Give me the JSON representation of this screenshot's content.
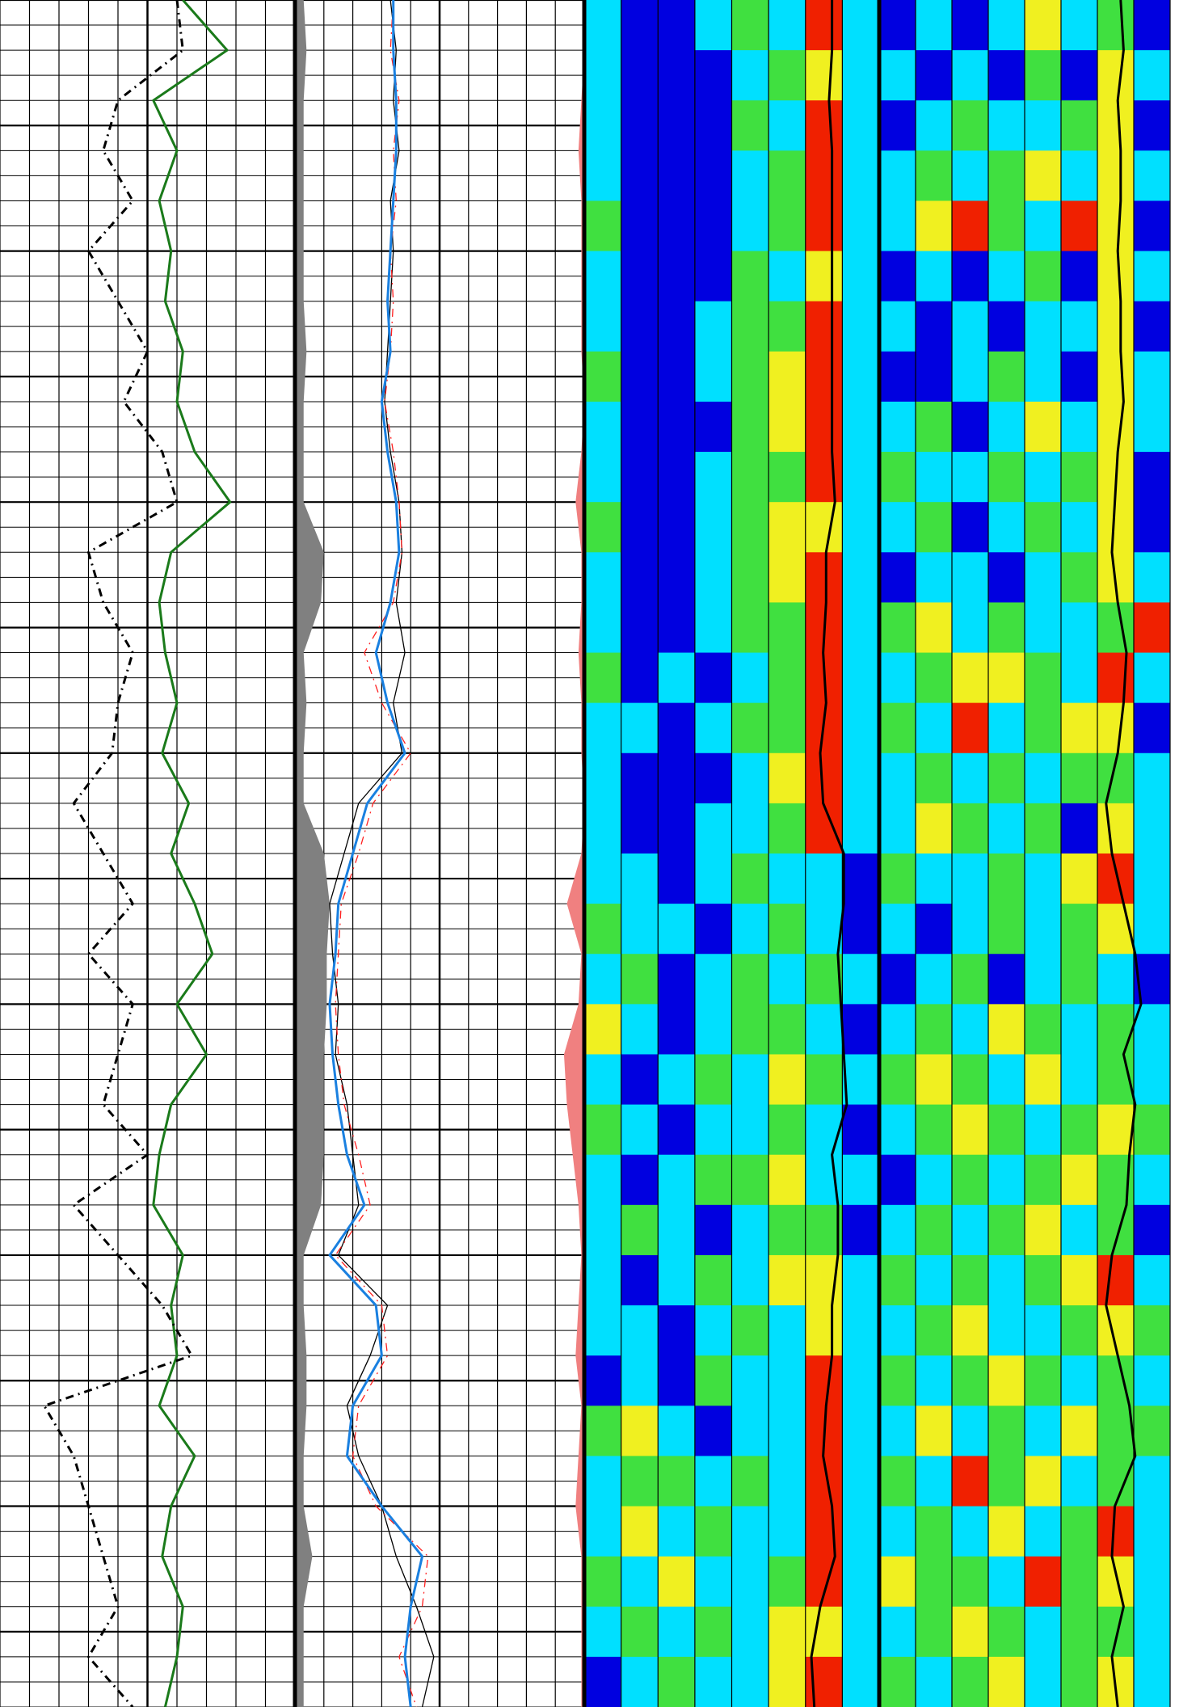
{
  "chart_data": {
    "type": "well-log",
    "ylim": [
      0,
      68
    ],
    "yticks": [
      0,
      1,
      2,
      3,
      4,
      5,
      6,
      7,
      8,
      9,
      10,
      11,
      12,
      13,
      14,
      15,
      16,
      17,
      18,
      19,
      20,
      21,
      22,
      23,
      24,
      25,
      26,
      27,
      28,
      29,
      30,
      31,
      32,
      33,
      34,
      35,
      36,
      37,
      38,
      39,
      40,
      41,
      42,
      43,
      44,
      45,
      46,
      47,
      48,
      49,
      50,
      51,
      52,
      53,
      54,
      55,
      56,
      57,
      58,
      59,
      60,
      61,
      62,
      63,
      64,
      65,
      66,
      67,
      68
    ],
    "depth": [
      0,
      2,
      4,
      6,
      8,
      10,
      12,
      14,
      16,
      18,
      20,
      22,
      24,
      26,
      28,
      30,
      32,
      34,
      36,
      38,
      40,
      42,
      44,
      46,
      48,
      50,
      52,
      54,
      56,
      58,
      60,
      62,
      64,
      66,
      68
    ],
    "colors": [
      "#0000e0",
      "#00e0ff",
      "#40e040",
      "#f0f020",
      "#f02000"
    ],
    "tracks": [
      {
        "type": "line",
        "xlim": [
          0,
          100
        ],
        "xticks": [
          0,
          10,
          20,
          30,
          40,
          50,
          60,
          70,
          80,
          90,
          100
        ],
        "grid": "both",
        "series": [
          {
            "color": "#1a7a1a",
            "dash": false,
            "values": [
              62,
              77,
              52,
              60,
              54,
              58,
              56,
              62,
              60,
              66,
              78,
              58,
              54,
              56,
              60,
              55,
              64,
              58,
              66,
              72,
              60,
              70,
              58,
              54,
              52,
              62,
              58,
              60,
              54,
              66,
              58,
              55,
              62,
              60,
              56
            ]
          },
          {
            "color": "#000000",
            "dash": true,
            "values": [
              60,
              62,
              40,
              35,
              45,
              30,
              40,
              50,
              42,
              55,
              60,
              30,
              35,
              45,
              40,
              38,
              25,
              35,
              45,
              30,
              45,
              40,
              35,
              50,
              25,
              40,
              55,
              65,
              15,
              25,
              30,
              35,
              40,
              30,
              45
            ]
          }
        ]
      },
      {
        "type": "line",
        "xlim": [
          0,
          100
        ],
        "xticks": [
          0,
          10,
          20,
          30,
          40,
          50,
          60,
          70,
          80,
          90,
          100
        ],
        "grid": "both",
        "series": [
          {
            "color": "#808080",
            "fill": "left",
            "values": [
              3,
              4,
              3,
              3,
              3,
              3,
              3,
              4,
              3,
              3,
              3,
              10,
              9,
              3,
              4,
              3,
              3,
              10,
              12,
              11,
              11,
              10,
              10,
              10,
              9,
              3,
              3,
              4,
              4,
              3,
              3,
              6,
              3,
              3,
              3
            ]
          },
          {
            "color": "#f08080",
            "fill": "right",
            "values": [
              0,
              0,
              1,
              2,
              1,
              1,
              1,
              1,
              0,
              1,
              3,
              1,
              1,
              2,
              1,
              1,
              0,
              1,
              6,
              1,
              2,
              7,
              6,
              4,
              2,
              1,
              2,
              3,
              1,
              2,
              3,
              1,
              1,
              1,
              1
            ]
          },
          {
            "color": "#000000",
            "dash": false,
            "thin": true,
            "values": [
              33,
              35,
              34,
              36,
              33,
              34,
              33,
              32,
              31,
              33,
              36,
              37,
              35,
              38,
              34,
              37,
              22,
              17,
              12,
              13,
              15,
              14,
              18,
              20,
              22,
              15,
              32,
              26,
              18,
              22,
              30,
              35,
              42,
              48,
              44
            ]
          },
          {
            "color": "#ff2020",
            "dash": true,
            "thin": true,
            "values": [
              34,
              33,
              36,
              34,
              35,
              33,
              34,
              33,
              31,
              34,
              36,
              37,
              34,
              24,
              30,
              40,
              27,
              22,
              16,
              15,
              14,
              15,
              17,
              22,
              26,
              14,
              30,
              32,
              22,
              20,
              28,
              46,
              44,
              36,
              42
            ]
          },
          {
            "color": "#1a80e0",
            "dash": false,
            "values": [
              34,
              34,
              35,
              35,
              34,
              33,
              32,
              33,
              30,
              32,
              35,
              36,
              33,
              28,
              32,
              38,
              25,
              20,
              15,
              14,
              12,
              13,
              15,
              18,
              24,
              12,
              28,
              30,
              20,
              18,
              30,
              44,
              40,
              38,
              40
            ]
          }
        ]
      },
      {
        "type": "heatmap",
        "xlim": [
          0,
          100
        ],
        "xticks": [
          0,
          12.5,
          25,
          37.5,
          50,
          62.5,
          75,
          87.5,
          100
        ],
        "grid": "x",
        "cells": [
          [
            1,
            0,
            0,
            1,
            2,
            1,
            4,
            1
          ],
          [
            1,
            0,
            0,
            0,
            1,
            2,
            3,
            1
          ],
          [
            1,
            0,
            0,
            0,
            2,
            1,
            4,
            1
          ],
          [
            1,
            0,
            0,
            0,
            1,
            2,
            4,
            1
          ],
          [
            2,
            0,
            0,
            0,
            1,
            2,
            4,
            1
          ],
          [
            1,
            0,
            0,
            0,
            2,
            1,
            3,
            1
          ],
          [
            1,
            0,
            0,
            1,
            2,
            2,
            4,
            1
          ],
          [
            2,
            0,
            0,
            1,
            2,
            3,
            4,
            1
          ],
          [
            1,
            0,
            0,
            0,
            2,
            3,
            4,
            1
          ],
          [
            1,
            0,
            0,
            1,
            2,
            2,
            4,
            1
          ],
          [
            2,
            0,
            0,
            1,
            2,
            3,
            3,
            1
          ],
          [
            1,
            0,
            0,
            1,
            2,
            3,
            4,
            1
          ],
          [
            1,
            0,
            0,
            1,
            2,
            2,
            4,
            1
          ],
          [
            2,
            0,
            1,
            0,
            1,
            2,
            4,
            1
          ],
          [
            1,
            1,
            0,
            1,
            2,
            2,
            4,
            1
          ],
          [
            1,
            0,
            0,
            0,
            1,
            3,
            4,
            1
          ],
          [
            1,
            0,
            0,
            1,
            1,
            2,
            4,
            1
          ],
          [
            1,
            1,
            0,
            1,
            2,
            1,
            1,
            0
          ],
          [
            2,
            1,
            1,
            0,
            1,
            2,
            1,
            0
          ],
          [
            1,
            2,
            0,
            1,
            2,
            1,
            2,
            1
          ],
          [
            3,
            1,
            0,
            1,
            2,
            2,
            1,
            0
          ],
          [
            1,
            0,
            1,
            2,
            1,
            3,
            2,
            1
          ],
          [
            2,
            1,
            0,
            1,
            1,
            2,
            1,
            0
          ],
          [
            1,
            0,
            1,
            2,
            2,
            3,
            1,
            1
          ],
          [
            1,
            2,
            1,
            0,
            1,
            2,
            2,
            0
          ],
          [
            1,
            0,
            1,
            2,
            1,
            3,
            3,
            1
          ],
          [
            1,
            1,
            0,
            1,
            2,
            1,
            3,
            1
          ],
          [
            0,
            1,
            0,
            2,
            1,
            1,
            4,
            1
          ],
          [
            2,
            3,
            1,
            0,
            1,
            1,
            4,
            1
          ],
          [
            1,
            2,
            2,
            1,
            2,
            1,
            4,
            1
          ],
          [
            1,
            3,
            1,
            2,
            1,
            1,
            4,
            1
          ],
          [
            2,
            1,
            3,
            1,
            1,
            2,
            4,
            1
          ],
          [
            1,
            2,
            1,
            2,
            1,
            3,
            3,
            1
          ],
          [
            0,
            1,
            2,
            1,
            1,
            3,
            4,
            1
          ]
        ],
        "series": [
          {
            "color": "#000000",
            "dash": false,
            "values": [
              84,
              84,
              83,
              84,
              84,
              84,
              84,
              84,
              84,
              84,
              85,
              82,
              82,
              81,
              82,
              80,
              81,
              88,
              88,
              86,
              87,
              88,
              89,
              84,
              86,
              86,
              84,
              84,
              82,
              81,
              84,
              85,
              80,
              77,
              78
            ]
          }
        ]
      },
      {
        "type": "heatmap",
        "xlim": [
          0,
          100
        ],
        "xticks": [
          0,
          12.5,
          25,
          37.5,
          50,
          62.5,
          75,
          87.5,
          100
        ],
        "grid": "x",
        "cells": [
          [
            0,
            1,
            0,
            1,
            3,
            1,
            2,
            0
          ],
          [
            1,
            0,
            1,
            0,
            2,
            0,
            3,
            1
          ],
          [
            0,
            1,
            2,
            1,
            1,
            2,
            3,
            0
          ],
          [
            1,
            2,
            1,
            2,
            3,
            1,
            3,
            1
          ],
          [
            1,
            3,
            4,
            2,
            1,
            4,
            3,
            0
          ],
          [
            0,
            1,
            0,
            1,
            2,
            0,
            3,
            1
          ],
          [
            1,
            0,
            1,
            0,
            1,
            1,
            3,
            0
          ],
          [
            0,
            0,
            1,
            2,
            1,
            0,
            3,
            1
          ],
          [
            1,
            2,
            0,
            1,
            3,
            1,
            3,
            1
          ],
          [
            2,
            1,
            1,
            2,
            1,
            2,
            3,
            0
          ],
          [
            1,
            2,
            0,
            1,
            2,
            1,
            3,
            0
          ],
          [
            0,
            1,
            1,
            0,
            1,
            2,
            3,
            1
          ],
          [
            2,
            3,
            1,
            2,
            1,
            1,
            2,
            4
          ],
          [
            1,
            2,
            3,
            3,
            2,
            1,
            4,
            1
          ],
          [
            2,
            1,
            4,
            1,
            2,
            3,
            3,
            0
          ],
          [
            1,
            2,
            1,
            2,
            1,
            2,
            2,
            1
          ],
          [
            1,
            3,
            2,
            1,
            2,
            0,
            3,
            1
          ],
          [
            2,
            1,
            1,
            2,
            1,
            3,
            4,
            1
          ],
          [
            1,
            0,
            1,
            2,
            1,
            2,
            3,
            1
          ],
          [
            0,
            1,
            2,
            0,
            1,
            2,
            1,
            0
          ],
          [
            1,
            2,
            1,
            3,
            2,
            1,
            2,
            1
          ],
          [
            2,
            3,
            2,
            1,
            3,
            1,
            2,
            1
          ],
          [
            1,
            2,
            3,
            2,
            1,
            2,
            3,
            2
          ],
          [
            0,
            1,
            2,
            1,
            2,
            3,
            2,
            1
          ],
          [
            1,
            2,
            1,
            2,
            3,
            1,
            2,
            0
          ],
          [
            2,
            1,
            2,
            1,
            2,
            3,
            4,
            1
          ],
          [
            1,
            2,
            3,
            1,
            1,
            2,
            3,
            2
          ],
          [
            2,
            1,
            2,
            3,
            2,
            1,
            2,
            1
          ],
          [
            1,
            3,
            1,
            2,
            1,
            3,
            2,
            2
          ],
          [
            2,
            1,
            4,
            2,
            3,
            1,
            2,
            1
          ],
          [
            1,
            2,
            1,
            3,
            1,
            2,
            4,
            1
          ],
          [
            3,
            2,
            2,
            1,
            4,
            2,
            3,
            1
          ],
          [
            1,
            2,
            3,
            2,
            1,
            2,
            2,
            1
          ],
          [
            2,
            1,
            2,
            3,
            1,
            2,
            3,
            1
          ]
        ],
        "series": [
          {
            "color": "#000000",
            "dash": false,
            "values": [
              83,
              84,
              82,
              83,
              83,
              82,
              83,
              83,
              84,
              82,
              81,
              80,
              82,
              85,
              84,
              82,
              78,
              80,
              84,
              88,
              90,
              84,
              88,
              86,
              85,
              80,
              78,
              82,
              86,
              88,
              81,
              80,
              84,
              80,
              82
            ]
          }
        ]
      }
    ]
  }
}
